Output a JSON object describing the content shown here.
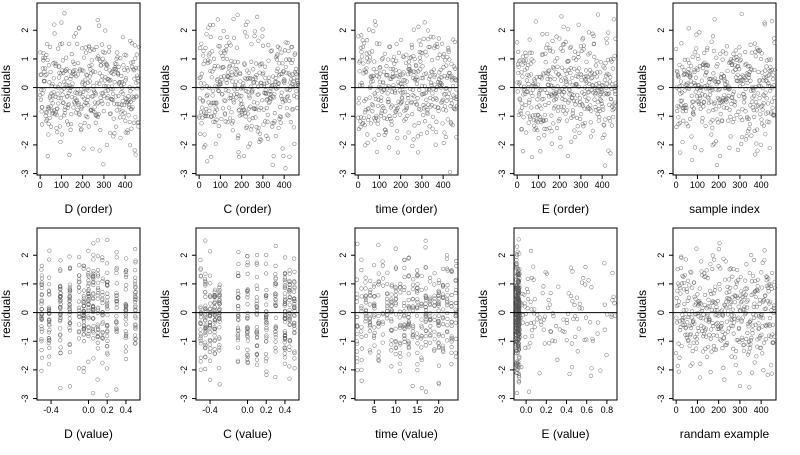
{
  "figure": {
    "title": "",
    "background": "#ffffff",
    "point_color": "#555555"
  },
  "chart_data": [
    {
      "type": "scatter",
      "xlabel": "D (order)",
      "ylabel": "residuals",
      "xlim": [
        -15,
        470
      ],
      "ylim": [
        -3.05,
        2.95
      ],
      "xticks": [
        0,
        100,
        200,
        300,
        400
      ],
      "yticks": [
        -3,
        -2,
        -1,
        0,
        1,
        2
      ],
      "xtick_labels": [
        "0",
        "100",
        "200",
        "300",
        "400"
      ],
      "ytick_labels": [
        "-3",
        "-2",
        "-1",
        "0",
        "1",
        "2"
      ],
      "hline": 0,
      "x_kind": "uniform",
      "x_range": [
        0,
        465
      ],
      "seed": 11,
      "n": 420
    },
    {
      "type": "scatter",
      "xlabel": "C (order)",
      "ylabel": "residuals",
      "xlim": [
        -15,
        470
      ],
      "ylim": [
        -3.05,
        2.95
      ],
      "xticks": [
        0,
        100,
        200,
        300,
        400
      ],
      "yticks": [
        -3,
        -2,
        -1,
        0,
        1,
        2
      ],
      "xtick_labels": [
        "0",
        "100",
        "200",
        "300",
        "400"
      ],
      "ytick_labels": [
        "-3",
        "-2",
        "-1",
        "0",
        "1",
        "2"
      ],
      "hline": 0,
      "x_kind": "uniform",
      "x_range": [
        0,
        465
      ],
      "seed": 23,
      "n": 420
    },
    {
      "type": "scatter",
      "xlabel": "time (order)",
      "ylabel": "residuals",
      "xlim": [
        -15,
        470
      ],
      "ylim": [
        -3.05,
        2.95
      ],
      "xticks": [
        0,
        100,
        200,
        300,
        400
      ],
      "yticks": [
        -3,
        -2,
        -1,
        0,
        1,
        2
      ],
      "xtick_labels": [
        "0",
        "100",
        "200",
        "300",
        "400"
      ],
      "ytick_labels": [
        "-3",
        "-2",
        "-1",
        "0",
        "1",
        "2"
      ],
      "hline": 0,
      "x_kind": "uniform",
      "x_range": [
        0,
        465
      ],
      "seed": 37,
      "n": 420
    },
    {
      "type": "scatter",
      "xlabel": "E (order)",
      "ylabel": "residuals",
      "xlim": [
        -15,
        470
      ],
      "ylim": [
        -3.05,
        2.95
      ],
      "xticks": [
        0,
        100,
        200,
        300,
        400
      ],
      "yticks": [
        -3,
        -2,
        -1,
        0,
        1,
        2
      ],
      "xtick_labels": [
        "0",
        "100",
        "200",
        "300",
        "400"
      ],
      "ytick_labels": [
        "-3",
        "-2",
        "-1",
        "0",
        "1",
        "2"
      ],
      "hline": 0,
      "x_kind": "uniform",
      "x_range": [
        0,
        465
      ],
      "seed": 41,
      "n": 420
    },
    {
      "type": "scatter",
      "xlabel": "sample index",
      "ylabel": "residuals",
      "xlim": [
        -15,
        470
      ],
      "ylim": [
        -3.05,
        2.95
      ],
      "xticks": [
        0,
        100,
        200,
        300,
        400
      ],
      "yticks": [
        -3,
        -2,
        -1,
        0,
        1,
        2
      ],
      "xtick_labels": [
        "0",
        "100",
        "200",
        "300",
        "400"
      ],
      "ytick_labels": [
        "-3",
        "-2",
        "-1",
        "0",
        "1",
        "2"
      ],
      "hline": 0,
      "x_kind": "uniform",
      "x_range": [
        0,
        465
      ],
      "seed": 53,
      "n": 420
    },
    {
      "type": "scatter",
      "xlabel": "D (value)",
      "ylabel": "residuals",
      "xlim": [
        -0.55,
        0.55
      ],
      "ylim": [
        -3.05,
        2.95
      ],
      "xticks": [
        -0.4,
        0.0,
        0.2,
        0.4
      ],
      "yticks": [
        -3,
        -2,
        -1,
        0,
        1,
        2
      ],
      "xtick_labels": [
        "-0.4",
        "0.0",
        "0.2",
        "0.4"
      ],
      "ytick_labels": [
        "-3",
        "-2",
        "-1",
        "0",
        "1",
        "2"
      ],
      "hline": 0,
      "x_kind": "clusters",
      "x_clusters": [
        -0.5,
        -0.42,
        -0.3,
        -0.2,
        -0.1,
        -0.05,
        0.0,
        0.05,
        0.1,
        0.15,
        0.2,
        0.3,
        0.4,
        0.5
      ],
      "seed": 67,
      "n": 420
    },
    {
      "type": "scatter",
      "xlabel": "C (value)",
      "ylabel": "residuals",
      "xlim": [
        -0.55,
        0.55
      ],
      "ylim": [
        -3.05,
        2.95
      ],
      "xticks": [
        -0.4,
        0.0,
        0.2,
        0.4
      ],
      "yticks": [
        -3,
        -2,
        -1,
        0,
        1,
        2
      ],
      "xtick_labels": [
        "-0.4",
        "0.0",
        "0.2",
        "0.4"
      ],
      "ytick_labels": [
        "-3",
        "-2",
        "-1",
        "0",
        "1",
        "2"
      ],
      "hline": 0,
      "x_kind": "clusters",
      "x_clusters": [
        -0.5,
        -0.45,
        -0.4,
        -0.35,
        -0.3,
        -0.1,
        0.0,
        0.1,
        0.2,
        0.3,
        0.4,
        0.45,
        0.5
      ],
      "seed": 79,
      "n": 420
    },
    {
      "type": "scatter",
      "xlabel": "time (value)",
      "ylabel": "residuals",
      "xlim": [
        0.5,
        24.5
      ],
      "ylim": [
        -3.05,
        2.95
      ],
      "xticks": [
        5,
        10,
        15,
        20
      ],
      "yticks": [
        -3,
        -2,
        -1,
        0,
        1,
        2
      ],
      "xtick_labels": [
        "5",
        "10",
        "15",
        "20"
      ],
      "ytick_labels": [
        "-3",
        "-2",
        "-1",
        "0",
        "1",
        "2"
      ],
      "hline": 0,
      "x_kind": "clusters",
      "x_clusters": [
        1,
        2,
        3,
        4,
        5,
        6,
        7,
        8,
        9,
        10,
        11,
        12,
        13,
        14,
        15,
        16,
        17,
        18,
        19,
        20,
        21,
        22,
        23,
        24
      ],
      "seed": 83,
      "n": 420
    },
    {
      "type": "scatter",
      "xlabel": "E (value)",
      "ylabel": "residuals",
      "xlim": [
        -0.12,
        0.9
      ],
      "ylim": [
        -3.05,
        2.95
      ],
      "xticks": [
        0.0,
        0.2,
        0.4,
        0.6,
        0.8
      ],
      "yticks": [
        -3,
        -2,
        -1,
        0,
        1,
        2
      ],
      "xtick_labels": [
        "0.0",
        "0.2",
        "0.4",
        "0.6",
        "0.8"
      ],
      "ytick_labels": [
        "-3",
        "-2",
        "-1",
        "0",
        "1",
        "2"
      ],
      "hline": 0,
      "x_kind": "skewed",
      "x_range": [
        -0.1,
        0.88
      ],
      "seed": 97,
      "n": 420
    },
    {
      "type": "scatter",
      "xlabel": "randam example",
      "ylabel": "residuals",
      "xlim": [
        -15,
        470
      ],
      "ylim": [
        -3.05,
        2.95
      ],
      "xticks": [
        0,
        100,
        200,
        300,
        400
      ],
      "yticks": [
        -3,
        -2,
        -1,
        0,
        1,
        2
      ],
      "xtick_labels": [
        "0",
        "100",
        "200",
        "300",
        "400"
      ],
      "ytick_labels": [
        "-3",
        "-2",
        "-1",
        "0",
        "1",
        "2"
      ],
      "hline": 0,
      "x_kind": "uniform",
      "x_range": [
        0,
        465
      ],
      "seed": 101,
      "n": 420
    }
  ]
}
